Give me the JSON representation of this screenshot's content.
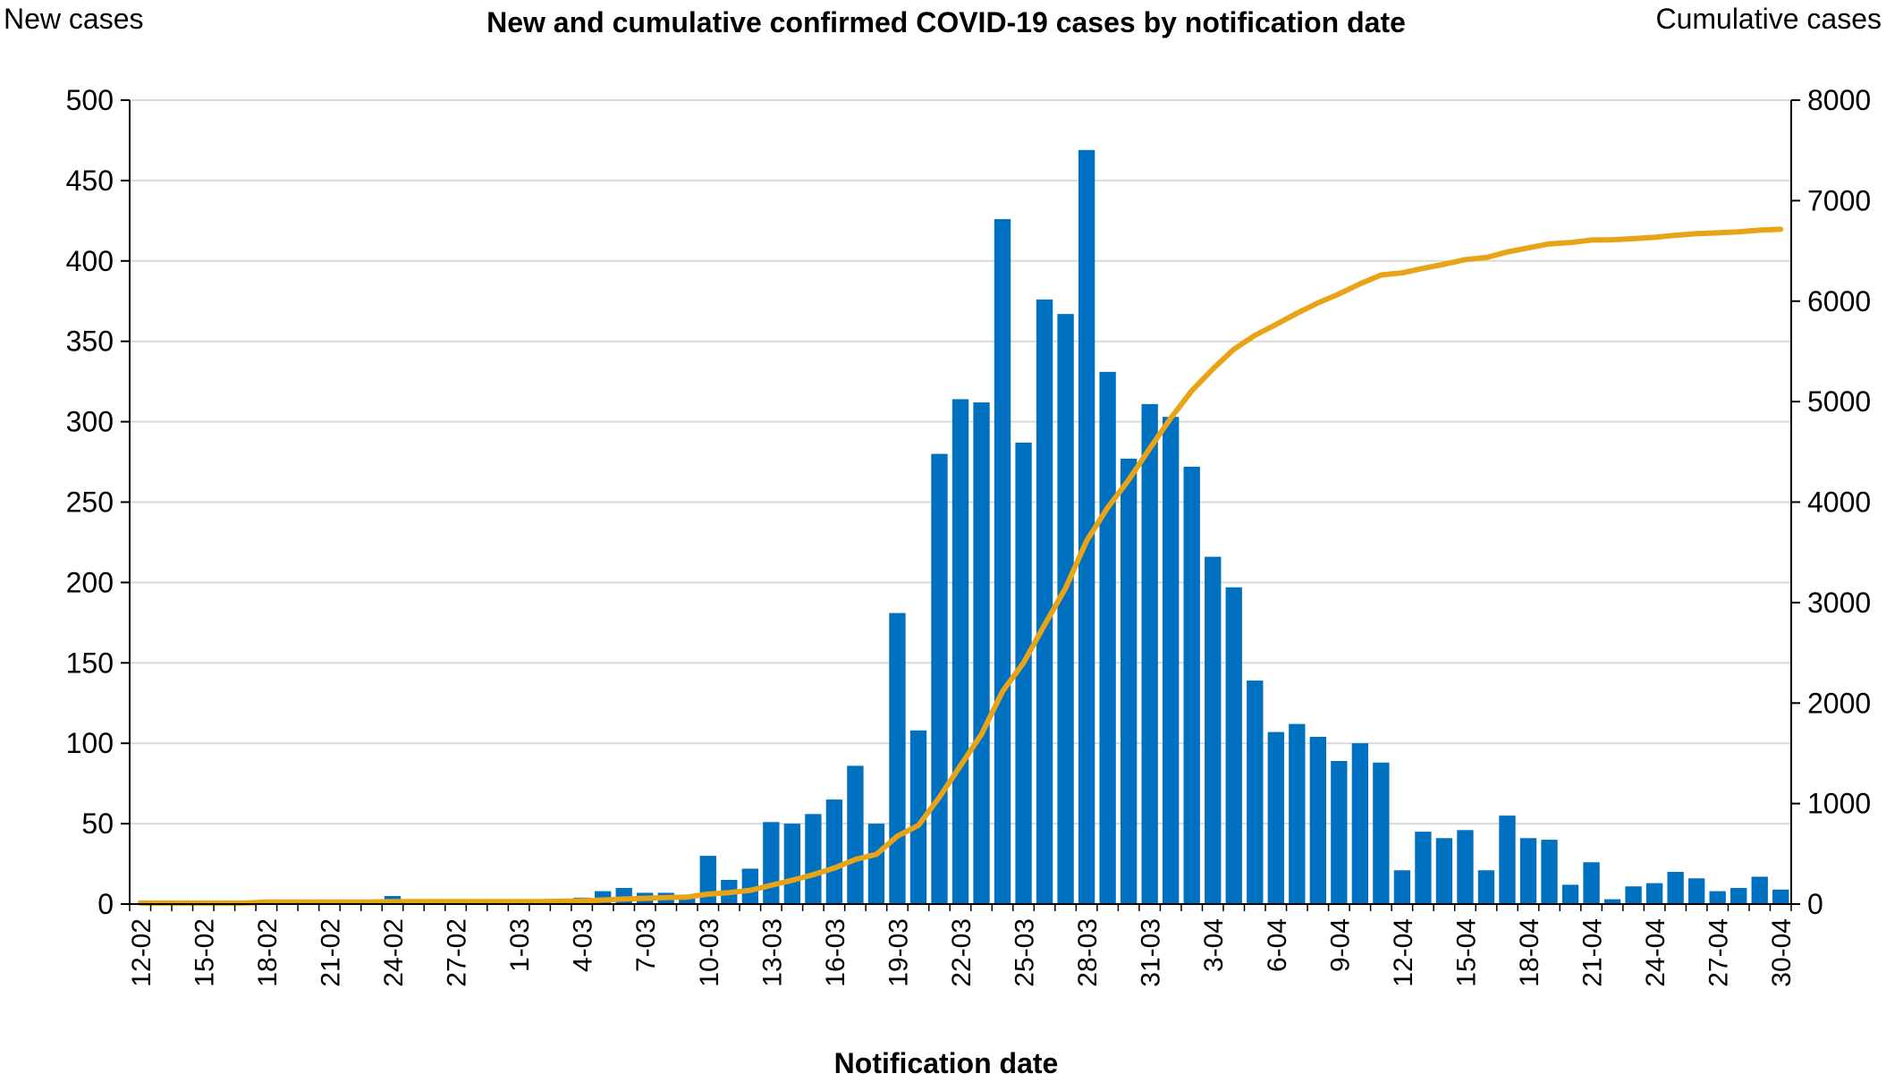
{
  "chart_data": {
    "type": "bar",
    "title": "New and cumulative confirmed COVID-19 cases by notification date",
    "xlabel": "Notification date",
    "ylabel_left": "New cases",
    "ylabel_right": "Cumulative cases",
    "ylim_left": [
      0,
      500
    ],
    "ylim_right": [
      0,
      8000
    ],
    "yticks_left": [
      "0",
      "50",
      "100",
      "150",
      "200",
      "250",
      "300",
      "350",
      "400",
      "450",
      "500"
    ],
    "yticks_right": [
      "0",
      "1000",
      "2000",
      "3000",
      "4000",
      "5000",
      "6000",
      "7000",
      "8000"
    ],
    "grid": true,
    "legend": "none",
    "categories": [
      "12-02",
      "13-02",
      "14-02",
      "15-02",
      "16-02",
      "17-02",
      "18-02",
      "19-02",
      "20-02",
      "21-02",
      "22-02",
      "23-02",
      "24-02",
      "25-02",
      "26-02",
      "27-02",
      "28-02",
      "29-02",
      "1-03",
      "2-03",
      "3-03",
      "4-03",
      "5-03",
      "6-03",
      "7-03",
      "8-03",
      "9-03",
      "10-03",
      "11-03",
      "12-03",
      "13-03",
      "14-03",
      "15-03",
      "16-03",
      "17-03",
      "18-03",
      "19-03",
      "20-03",
      "21-03",
      "22-03",
      "23-03",
      "24-03",
      "25-03",
      "26-03",
      "27-03",
      "28-03",
      "29-03",
      "30-03",
      "31-03",
      "1-04",
      "2-04",
      "3-04",
      "4-04",
      "5-04",
      "6-04",
      "7-04",
      "8-04",
      "9-04",
      "10-04",
      "11-04",
      "12-04",
      "13-04",
      "14-04",
      "15-04",
      "16-04",
      "17-04",
      "18-04",
      "19-04",
      "20-04",
      "21-04",
      "22-04",
      "23-04",
      "24-04",
      "25-04",
      "26-04",
      "27-04",
      "28-04",
      "29-04",
      "30-04"
    ],
    "x_tick_labels": [
      "12-02",
      "15-02",
      "18-02",
      "21-02",
      "24-02",
      "27-02",
      "1-03",
      "4-03",
      "7-03",
      "10-03",
      "13-03",
      "16-03",
      "19-03",
      "22-03",
      "25-03",
      "28-03",
      "31-03",
      "3-04",
      "6-04",
      "9-04",
      "12-04",
      "15-04",
      "18-04",
      "21-04",
      "24-04",
      "27-04",
      "30-04"
    ],
    "series": [
      {
        "axis": "left",
        "kind": "bar",
        "color": "#0070C0",
        "values": [
          0,
          0,
          0,
          0,
          0,
          0,
          1,
          0,
          0,
          0,
          0,
          0,
          5,
          0,
          0,
          0,
          0,
          0,
          0,
          0,
          3,
          4,
          8,
          10,
          7,
          7,
          5,
          30,
          15,
          22,
          51,
          50,
          56,
          65,
          86,
          50,
          181,
          108,
          280,
          314,
          312,
          426,
          287,
          376,
          367,
          469,
          331,
          277,
          311,
          303,
          272,
          216,
          197,
          139,
          107,
          112,
          104,
          89,
          100,
          88,
          21,
          45,
          41,
          46,
          21,
          55,
          41,
          40,
          12,
          26,
          3,
          11,
          13,
          20,
          16,
          8,
          10,
          17,
          9
        ]
      },
      {
        "axis": "right",
        "kind": "line",
        "color": "#E8A317",
        "values": [
          10,
          10,
          10,
          10,
          10,
          10,
          20,
          20,
          20,
          20,
          20,
          20,
          25,
          25,
          25,
          25,
          25,
          25,
          25,
          25,
          28,
          32,
          40,
          50,
          57,
          64,
          69,
          99,
          114,
          136,
          187,
          237,
          293,
          358,
          444,
          494,
          675,
          783,
          1063,
          1377,
          1689,
          2115,
          2402,
          2778,
          3145,
          3614,
          3945,
          4222,
          4533,
          4836,
          5108,
          5324,
          5521,
          5660,
          5767,
          5879,
          5983,
          6072,
          6172,
          6260,
          6281,
          6326,
          6367,
          6413,
          6434,
          6489,
          6530,
          6570,
          6582,
          6608,
          6611,
          6622,
          6635,
          6655,
          6671,
          6679,
          6689,
          6706,
          6715
        ]
      }
    ]
  }
}
